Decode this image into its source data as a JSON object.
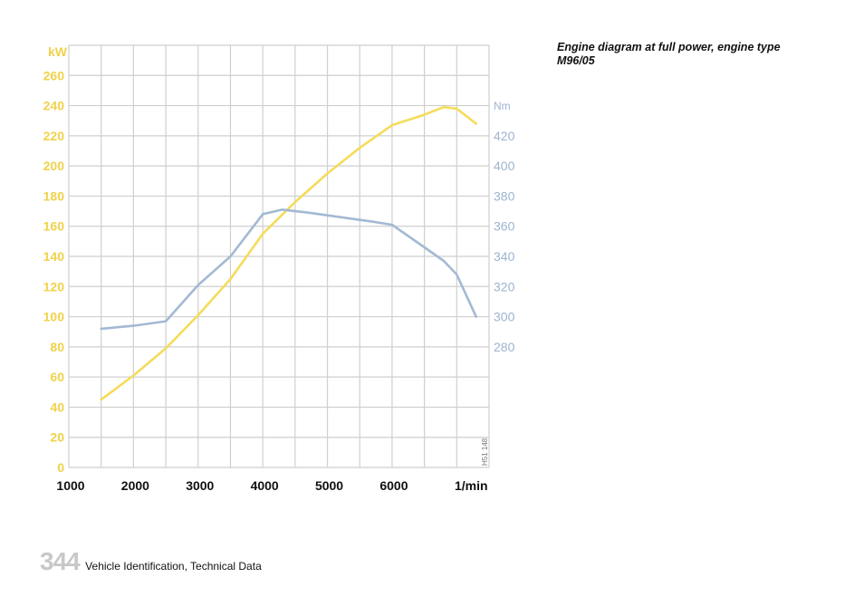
{
  "caption": "Engine diagram at full power, engine type M96/05",
  "footer": {
    "page_number": "344",
    "section": "Vehicle Identification, Technical Data"
  },
  "chart_data": {
    "type": "line",
    "left_axis_label": "kW",
    "right_axis_label": "Nm",
    "x_unit_label": "1/min",
    "figure_code": "H51 148",
    "x_ticks": [
      "1000",
      "2000",
      "3000",
      "4000",
      "5000",
      "6000"
    ],
    "y_left_ticks": [
      "0",
      "20",
      "40",
      "60",
      "80",
      "100",
      "120",
      "140",
      "160",
      "180",
      "200",
      "220",
      "240",
      "260"
    ],
    "y_right_ticks": [
      "280",
      "300",
      "320",
      "340",
      "360",
      "380",
      "400",
      "420"
    ],
    "xlim": [
      1000,
      7500
    ],
    "ylim_left": [
      0,
      280
    ],
    "ylim_right": [
      200,
      480
    ],
    "grid": true,
    "colors": {
      "power": "#f5dc5a",
      "torque": "#a3b9d3",
      "left_axis": "#f0d24a",
      "right_axis": "#9db4cf",
      "grid": "#cfcfcf"
    },
    "series": [
      {
        "axis": "left",
        "x": [
          1500,
          2000,
          2500,
          3000,
          3500,
          4000,
          4500,
          5000,
          5500,
          6000,
          6500,
          6800,
          7000,
          7300
        ],
        "values": [
          45,
          61,
          79,
          101,
          125,
          155,
          176,
          195,
          212,
          227,
          234,
          239,
          238,
          228
        ]
      },
      {
        "axis": "right",
        "x": [
          1500,
          2000,
          2500,
          3000,
          3500,
          4000,
          4300,
          4700,
          5200,
          5700,
          6000,
          6500,
          6800,
          7000,
          7300
        ],
        "values": [
          292,
          294,
          297,
          321,
          340,
          368,
          371,
          369,
          366,
          363,
          361,
          346,
          337,
          328,
          300
        ]
      }
    ]
  }
}
